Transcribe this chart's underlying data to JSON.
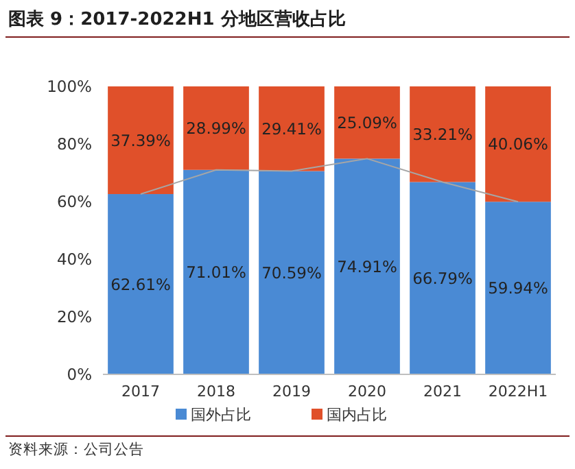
{
  "chart_data": {
    "type": "bar",
    "title": "图表 9：2017-2022H1 分地区营收占比",
    "stacked": true,
    "legend": "bottom",
    "categories": [
      "2017",
      "2018",
      "2019",
      "2020",
      "2021",
      "2022H1"
    ],
    "ylim": [
      0,
      100
    ],
    "yticks": [
      {
        "value": 0,
        "label": "0%"
      },
      {
        "value": 20,
        "label": "20%"
      },
      {
        "value": 40,
        "label": "40%"
      },
      {
        "value": 60,
        "label": "60%"
      },
      {
        "value": 80,
        "label": "80%"
      },
      {
        "value": 100,
        "label": "100%"
      }
    ],
    "series": [
      {
        "name": "国外占比",
        "color": "#4a8ad4",
        "values": [
          62.61,
          71.01,
          70.59,
          74.91,
          66.79,
          59.94
        ],
        "value_labels": [
          "62.61%",
          "71.01%",
          "70.59%",
          "74.91%",
          "66.79%",
          "59.94%"
        ]
      },
      {
        "name": "国内占比",
        "color": "#e0502a",
        "values": [
          37.39,
          28.99,
          29.41,
          25.09,
          33.21,
          40.06
        ],
        "value_labels": [
          "37.39%",
          "28.99%",
          "29.41%",
          "25.09%",
          "33.21%",
          "40.06%"
        ]
      },
      {
        "type": "line",
        "color": "#a6a6a6",
        "values": [
          62.61,
          71.01,
          70.59,
          74.91,
          66.79,
          59.94
        ]
      }
    ],
    "annotations": [
      "资料来源：公司公告"
    ]
  }
}
